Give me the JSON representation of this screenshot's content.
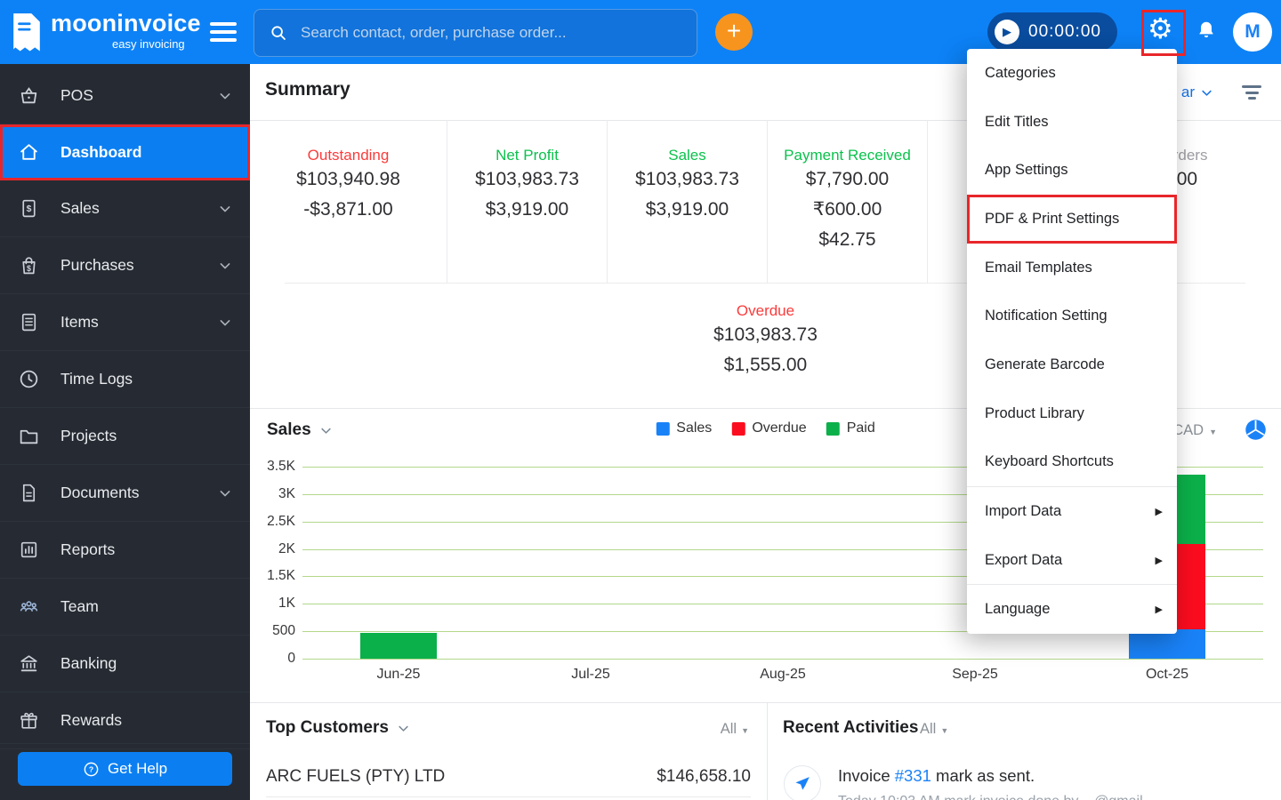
{
  "topbar": {
    "brand": "mooninvoice",
    "brand_sub": "easy invoicing",
    "search_placeholder": "Search contact, order, purchase order...",
    "timer": "00:00:00",
    "avatar_initial": "M"
  },
  "sidebar": {
    "items": [
      {
        "label": "POS",
        "icon": "basket-icon",
        "chevron": true,
        "active": false
      },
      {
        "label": "Dashboard",
        "icon": "home-icon",
        "chevron": false,
        "active": true
      },
      {
        "label": "Sales",
        "icon": "invoice-icon",
        "chevron": true,
        "active": false
      },
      {
        "label": "Purchases",
        "icon": "bag-icon",
        "chevron": true,
        "active": false
      },
      {
        "label": "Items",
        "icon": "list-icon",
        "chevron": true,
        "active": false
      },
      {
        "label": "Time Logs",
        "icon": "clock-icon",
        "chevron": false,
        "active": false
      },
      {
        "label": "Projects",
        "icon": "folder-icon",
        "chevron": false,
        "active": false
      },
      {
        "label": "Documents",
        "icon": "document-icon",
        "chevron": true,
        "active": false
      },
      {
        "label": "Reports",
        "icon": "bar-chart-icon",
        "chevron": false,
        "active": false
      },
      {
        "label": "Team",
        "icon": "team-icon",
        "chevron": false,
        "active": false
      },
      {
        "label": "Banking",
        "icon": "bank-icon",
        "chevron": false,
        "active": false
      },
      {
        "label": "Rewards",
        "icon": "gift-icon",
        "chevron": false,
        "active": false
      }
    ],
    "get_help": "Get Help"
  },
  "summary": {
    "title": "Summary",
    "period_partial": "ar",
    "stats": [
      {
        "label": "Outstanding",
        "color": "#fb3b3b",
        "values": [
          "$103,940.98",
          "-$3,871.00"
        ]
      },
      {
        "label": "Net Profit",
        "color": "#0cc14e",
        "values": [
          "$103,983.73",
          "$3,919.00"
        ]
      },
      {
        "label": "Sales",
        "color": "#0cc14e",
        "values": [
          "$103,983.73",
          "$3,919.00"
        ]
      },
      {
        "label": "Payment Received",
        "color": "#0cc14e",
        "values": [
          "$7,790.00",
          "₹600.00",
          "$42.75"
        ]
      },
      {
        "label": "",
        "color": "#9e9ea4",
        "values": []
      },
      {
        "label": "Orders",
        "color": "#9e9ea4",
        "values": [
          ".00"
        ]
      }
    ],
    "overdue": {
      "label": "Overdue",
      "color": "#fb3b3b",
      "values": [
        "$103,983.73",
        "$1,555.00"
      ]
    }
  },
  "chart_ui": {
    "title": "Sales",
    "currency": "CAD"
  },
  "chart_data": {
    "type": "bar",
    "stacked": true,
    "title": "Sales",
    "xlabel": "",
    "ylabel": "",
    "categories": [
      "Jun-25",
      "Jul-25",
      "Aug-25",
      "Sep-25",
      "Oct-25"
    ],
    "series": [
      {
        "name": "Sales",
        "color": "#1a82f7",
        "values": [
          0,
          0,
          0,
          0,
          530
        ]
      },
      {
        "name": "Overdue",
        "color": "#fb0d1f",
        "values": [
          0,
          0,
          0,
          0,
          1555
        ]
      },
      {
        "name": "Paid",
        "color": "#0cb04a",
        "values": [
          470,
          0,
          0,
          0,
          1275
        ]
      }
    ],
    "ylim": [
      0,
      3500
    ],
    "yticks": [
      "3.5K",
      "3K",
      "2.5K",
      "2K",
      "1.5K",
      "1K",
      "500",
      "0"
    ],
    "grid": true,
    "legend_position": "top-center"
  },
  "top_customers": {
    "title": "Top Customers",
    "filter": "All",
    "rows": [
      {
        "name": "ARC FUELS (PTY) LTD",
        "amount": "$146,658.10"
      }
    ]
  },
  "recent_activities": {
    "title": "Recent Activities",
    "filter": "All",
    "rows": [
      {
        "prefix": "Invoice ",
        "link": "#331",
        "suffix": " mark as sent.",
        "sub": "Today 10:03 AM mark invoice done by ...@gmail..."
      }
    ]
  },
  "settings_menu": {
    "items": [
      {
        "label": "Categories"
      },
      {
        "label": "Edit Titles"
      },
      {
        "label": "App Settings"
      },
      {
        "label": "PDF & Print Settings",
        "highlighted": true
      },
      {
        "label": "Email Templates"
      },
      {
        "label": "Notification Setting"
      },
      {
        "label": "Generate Barcode"
      },
      {
        "label": "Product Library"
      },
      {
        "label": "Keyboard Shortcuts"
      },
      {
        "label": "Import Data",
        "submenu": true,
        "divider_before": true
      },
      {
        "label": "Export Data",
        "submenu": true
      },
      {
        "label": "Language",
        "submenu": true,
        "divider_before": true
      }
    ]
  },
  "colors": {
    "topbar_blue": "#0d82f6",
    "active_blue": "#0b7ff2",
    "timer_navy": "#0a4d9f",
    "accent_orange": "#f7941e",
    "negative_red": "#fb3b3b",
    "positive_green": "#0cc14e",
    "bar_blue": "#1a82f7",
    "bar_red": "#fb0d1f",
    "bar_green": "#0cb04a",
    "gridline_green": "#b3d78b",
    "highlight_box_red": "#e8262a",
    "sidebar_dark": "#262b33"
  }
}
